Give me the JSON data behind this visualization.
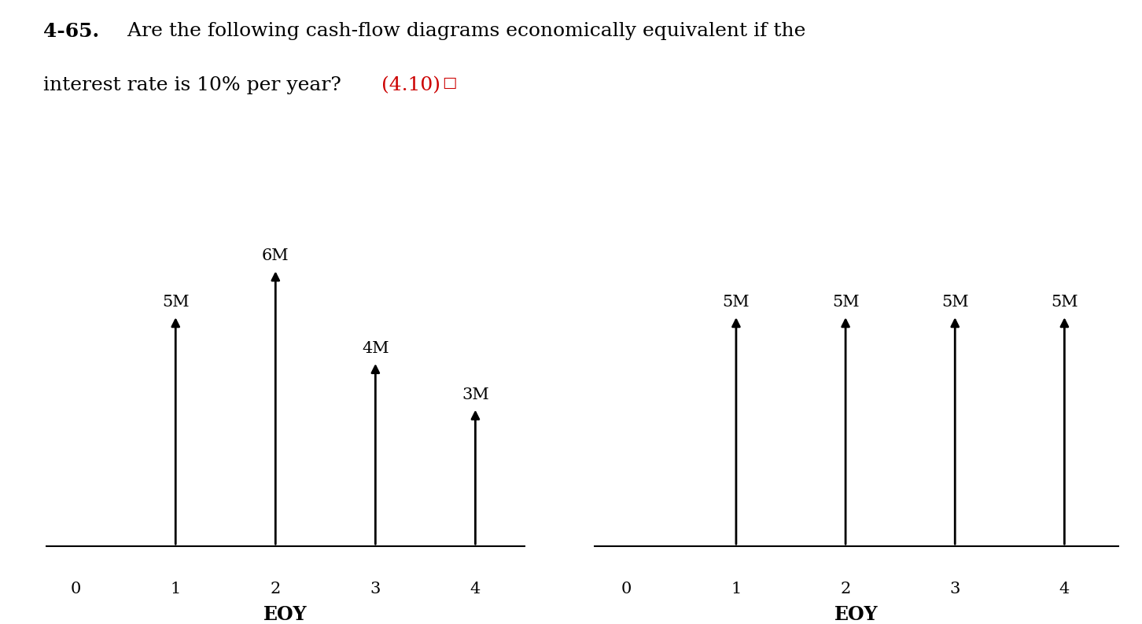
{
  "background_color": "#ffffff",
  "diagram1": {
    "x_values": [
      1,
      2,
      3,
      4
    ],
    "y_values": [
      5,
      6,
      4,
      3
    ],
    "labels": [
      "5M",
      "6M",
      "4M",
      "3M"
    ],
    "x_axis_label": "EOY",
    "x_ticks": [
      0,
      1,
      2,
      3,
      4
    ]
  },
  "diagram2": {
    "x_values": [
      1,
      2,
      3,
      4
    ],
    "y_values": [
      5,
      5,
      5,
      5
    ],
    "labels": [
      "5M",
      "5M",
      "5M",
      "5M"
    ],
    "x_axis_label": "EOY",
    "x_ticks": [
      0,
      1,
      2,
      3,
      4
    ]
  },
  "arrow_color": "#000000",
  "axis_color": "#000000",
  "text_color": "#000000",
  "ref_color": "#cc0000",
  "bold_prefix": "4-65.",
  "title_normal": " Are the following cash-flow diagrams economically equivalent if the",
  "line2_normal": "interest rate is 10% per year? ",
  "title_ref": "(4.10)",
  "title_checkbox": "□",
  "label_fontsize": 15,
  "tick_fontsize": 15,
  "eoy_fontsize": 17,
  "title_fontsize": 18,
  "ref_fontsize": 18,
  "y_max": 7.5,
  "x_min": -0.3,
  "x_max": 4.5
}
